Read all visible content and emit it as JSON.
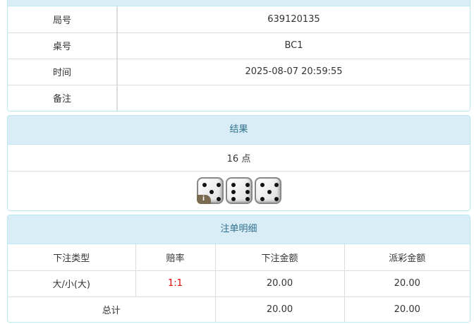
{
  "info": {
    "rows": [
      {
        "label": "局号",
        "value": "639120135"
      },
      {
        "label": "桌号",
        "value": "BC1"
      },
      {
        "label": "时间",
        "value": "2025-08-07 20:59:55"
      },
      {
        "label": "备注",
        "value": ""
      }
    ]
  },
  "result": {
    "title": "结果",
    "points": "16 点",
    "dice": [
      5,
      6,
      5
    ],
    "badge": "i"
  },
  "bets": {
    "title": "注单明细",
    "columns": [
      "下注类型",
      "赔率",
      "下注金额",
      "派彩金额"
    ],
    "rows": [
      {
        "type": "大/小(大)",
        "odds": "1:1",
        "amount": "20.00",
        "payout": "20.00"
      }
    ],
    "total": {
      "label": "总计",
      "amount": "20.00",
      "payout": "20.00"
    }
  },
  "colors": {
    "header_bg": "#d9edf7",
    "header_text": "#31708f",
    "odds": "#ee0000"
  }
}
